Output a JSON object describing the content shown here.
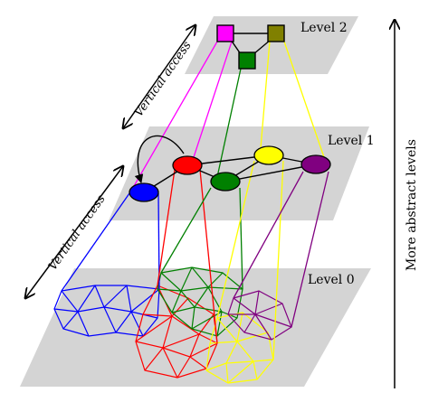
{
  "levels": {
    "level2": "Level 2",
    "level1": "Level 1",
    "level0": "Level 0"
  },
  "labels": {
    "vertical_access_upper": "Vertical access",
    "vertical_access_lower": "Vertical access",
    "more_abstract": "More abstract levels"
  },
  "colors": {
    "plane": "#d4d4d4",
    "magenta": "#ff00ff",
    "olive": "#808000",
    "green": "#008000",
    "blue": "#0000ff",
    "red": "#ff0000",
    "yellow": "#ffff00",
    "purple": "#800080",
    "black": "#000000"
  },
  "clusters": [
    "blue",
    "red",
    "green",
    "yellow",
    "purple"
  ]
}
